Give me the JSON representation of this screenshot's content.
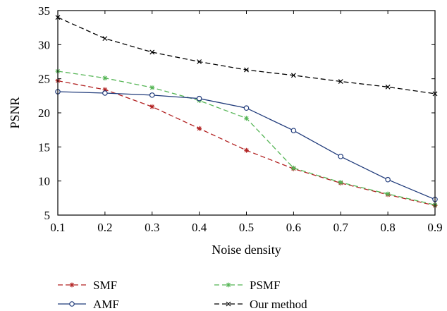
{
  "chart_data": {
    "type": "line",
    "title": "",
    "xlabel": "Noise density",
    "ylabel": "PSNR",
    "xlim": [
      0.1,
      0.9
    ],
    "ylim": [
      5,
      35
    ],
    "x_ticks": [
      "0.1",
      "0.2",
      "0.3",
      "0.4",
      "0.5",
      "0.6",
      "0.7",
      "0.8",
      "0.9"
    ],
    "y_ticks": [
      "5",
      "10",
      "15",
      "20",
      "25",
      "30",
      "35"
    ],
    "grid": false,
    "legend_position": "bottom",
    "x": [
      0.1,
      0.2,
      0.3,
      0.4,
      0.5,
      0.6,
      0.7,
      0.8,
      0.9
    ],
    "series": [
      {
        "name": "SMF",
        "color": "#b22222",
        "dash": "dashed",
        "marker": "star",
        "values": [
          24.7,
          23.4,
          20.9,
          17.7,
          14.5,
          11.8,
          9.7,
          8.0,
          6.4
        ]
      },
      {
        "name": "PSMF",
        "color": "#55b555",
        "dash": "dashed",
        "marker": "star",
        "values": [
          26.1,
          25.1,
          23.7,
          21.8,
          19.2,
          11.9,
          9.8,
          8.1,
          6.5
        ]
      },
      {
        "name": "AMF",
        "color": "#1f3a7a",
        "dash": "solid",
        "marker": "circle",
        "values": [
          23.1,
          22.9,
          22.6,
          22.1,
          20.7,
          17.4,
          13.6,
          10.2,
          7.3
        ]
      },
      {
        "name": "Our method",
        "color": "#000000",
        "dash": "dashed",
        "marker": "x",
        "values": [
          34.0,
          30.9,
          28.9,
          27.5,
          26.3,
          25.5,
          24.6,
          23.8,
          22.8
        ]
      }
    ]
  }
}
